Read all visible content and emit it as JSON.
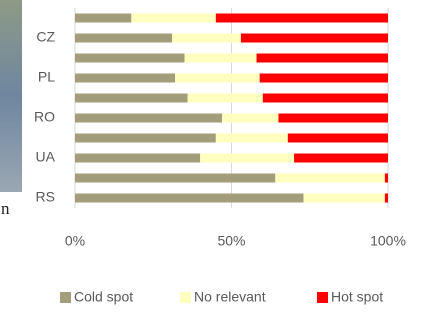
{
  "fragment_text": "n",
  "chart_data": {
    "type": "stacked_bar_horizontal",
    "categories": [
      null,
      "CZ",
      null,
      "PL",
      null,
      "RO",
      null,
      "UA",
      null,
      "RS"
    ],
    "series": [
      {
        "name": "Cold spot",
        "color": "#a39d7c",
        "values": [
          18,
          31,
          35,
          32,
          36,
          47,
          45,
          40,
          64,
          73
        ]
      },
      {
        "name": "No relevant",
        "color": "#ffffc0",
        "values": [
          27,
          22,
          23,
          27,
          24,
          18,
          23,
          30,
          35,
          26
        ]
      },
      {
        "name": "Hot spot",
        "color": "#ff0000",
        "values": [
          55,
          47,
          42,
          41,
          40,
          35,
          32,
          30,
          1,
          1
        ]
      }
    ],
    "xlim": [
      0,
      100
    ],
    "xticks": [
      {
        "value": 0,
        "label": "0%"
      },
      {
        "value": 50,
        "label": "50%"
      },
      {
        "value": 100,
        "label": "100%"
      }
    ],
    "grid": true,
    "legend": "bottom"
  }
}
